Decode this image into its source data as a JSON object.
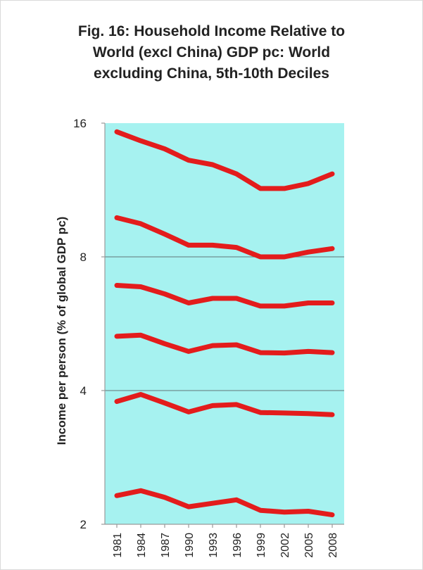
{
  "chart_data": {
    "type": "line",
    "title": "Fig. 16: Household Income Relative to\nWorld (excl China) GDP pc: World\nexcluding China, 5th-10th Deciles",
    "xlabel": "",
    "ylabel": "Income per person  (% of global GDP pc)",
    "x": [
      1981,
      1984,
      1987,
      1990,
      1993,
      1996,
      1999,
      2002,
      2005,
      2008
    ],
    "yscale": "log2",
    "ylim": [
      2,
      16
    ],
    "yticks": [
      2,
      4,
      8,
      16
    ],
    "grid": "horizontal at 4 and 8",
    "plot_background": "#a6f2f0",
    "line_color": "#e31c1c",
    "series": [
      {
        "values": [
          15.3,
          14.6,
          14.0,
          13.2,
          12.9,
          12.3,
          11.4,
          11.4,
          11.7,
          12.3
        ]
      },
      {
        "values": [
          9.8,
          9.5,
          9.0,
          8.5,
          8.5,
          8.4,
          8.0,
          8.0,
          8.2,
          8.35
        ]
      },
      {
        "values": [
          6.9,
          6.85,
          6.6,
          6.3,
          6.45,
          6.45,
          6.2,
          6.2,
          6.3,
          6.3
        ]
      },
      {
        "values": [
          5.3,
          5.33,
          5.1,
          4.9,
          5.05,
          5.07,
          4.87,
          4.86,
          4.9,
          4.87
        ]
      },
      {
        "values": [
          3.78,
          3.92,
          3.75,
          3.58,
          3.7,
          3.72,
          3.57,
          3.56,
          3.55,
          3.53
        ]
      },
      {
        "values": [
          2.32,
          2.38,
          2.3,
          2.19,
          2.23,
          2.27,
          2.15,
          2.13,
          2.14,
          2.1
        ]
      }
    ]
  }
}
